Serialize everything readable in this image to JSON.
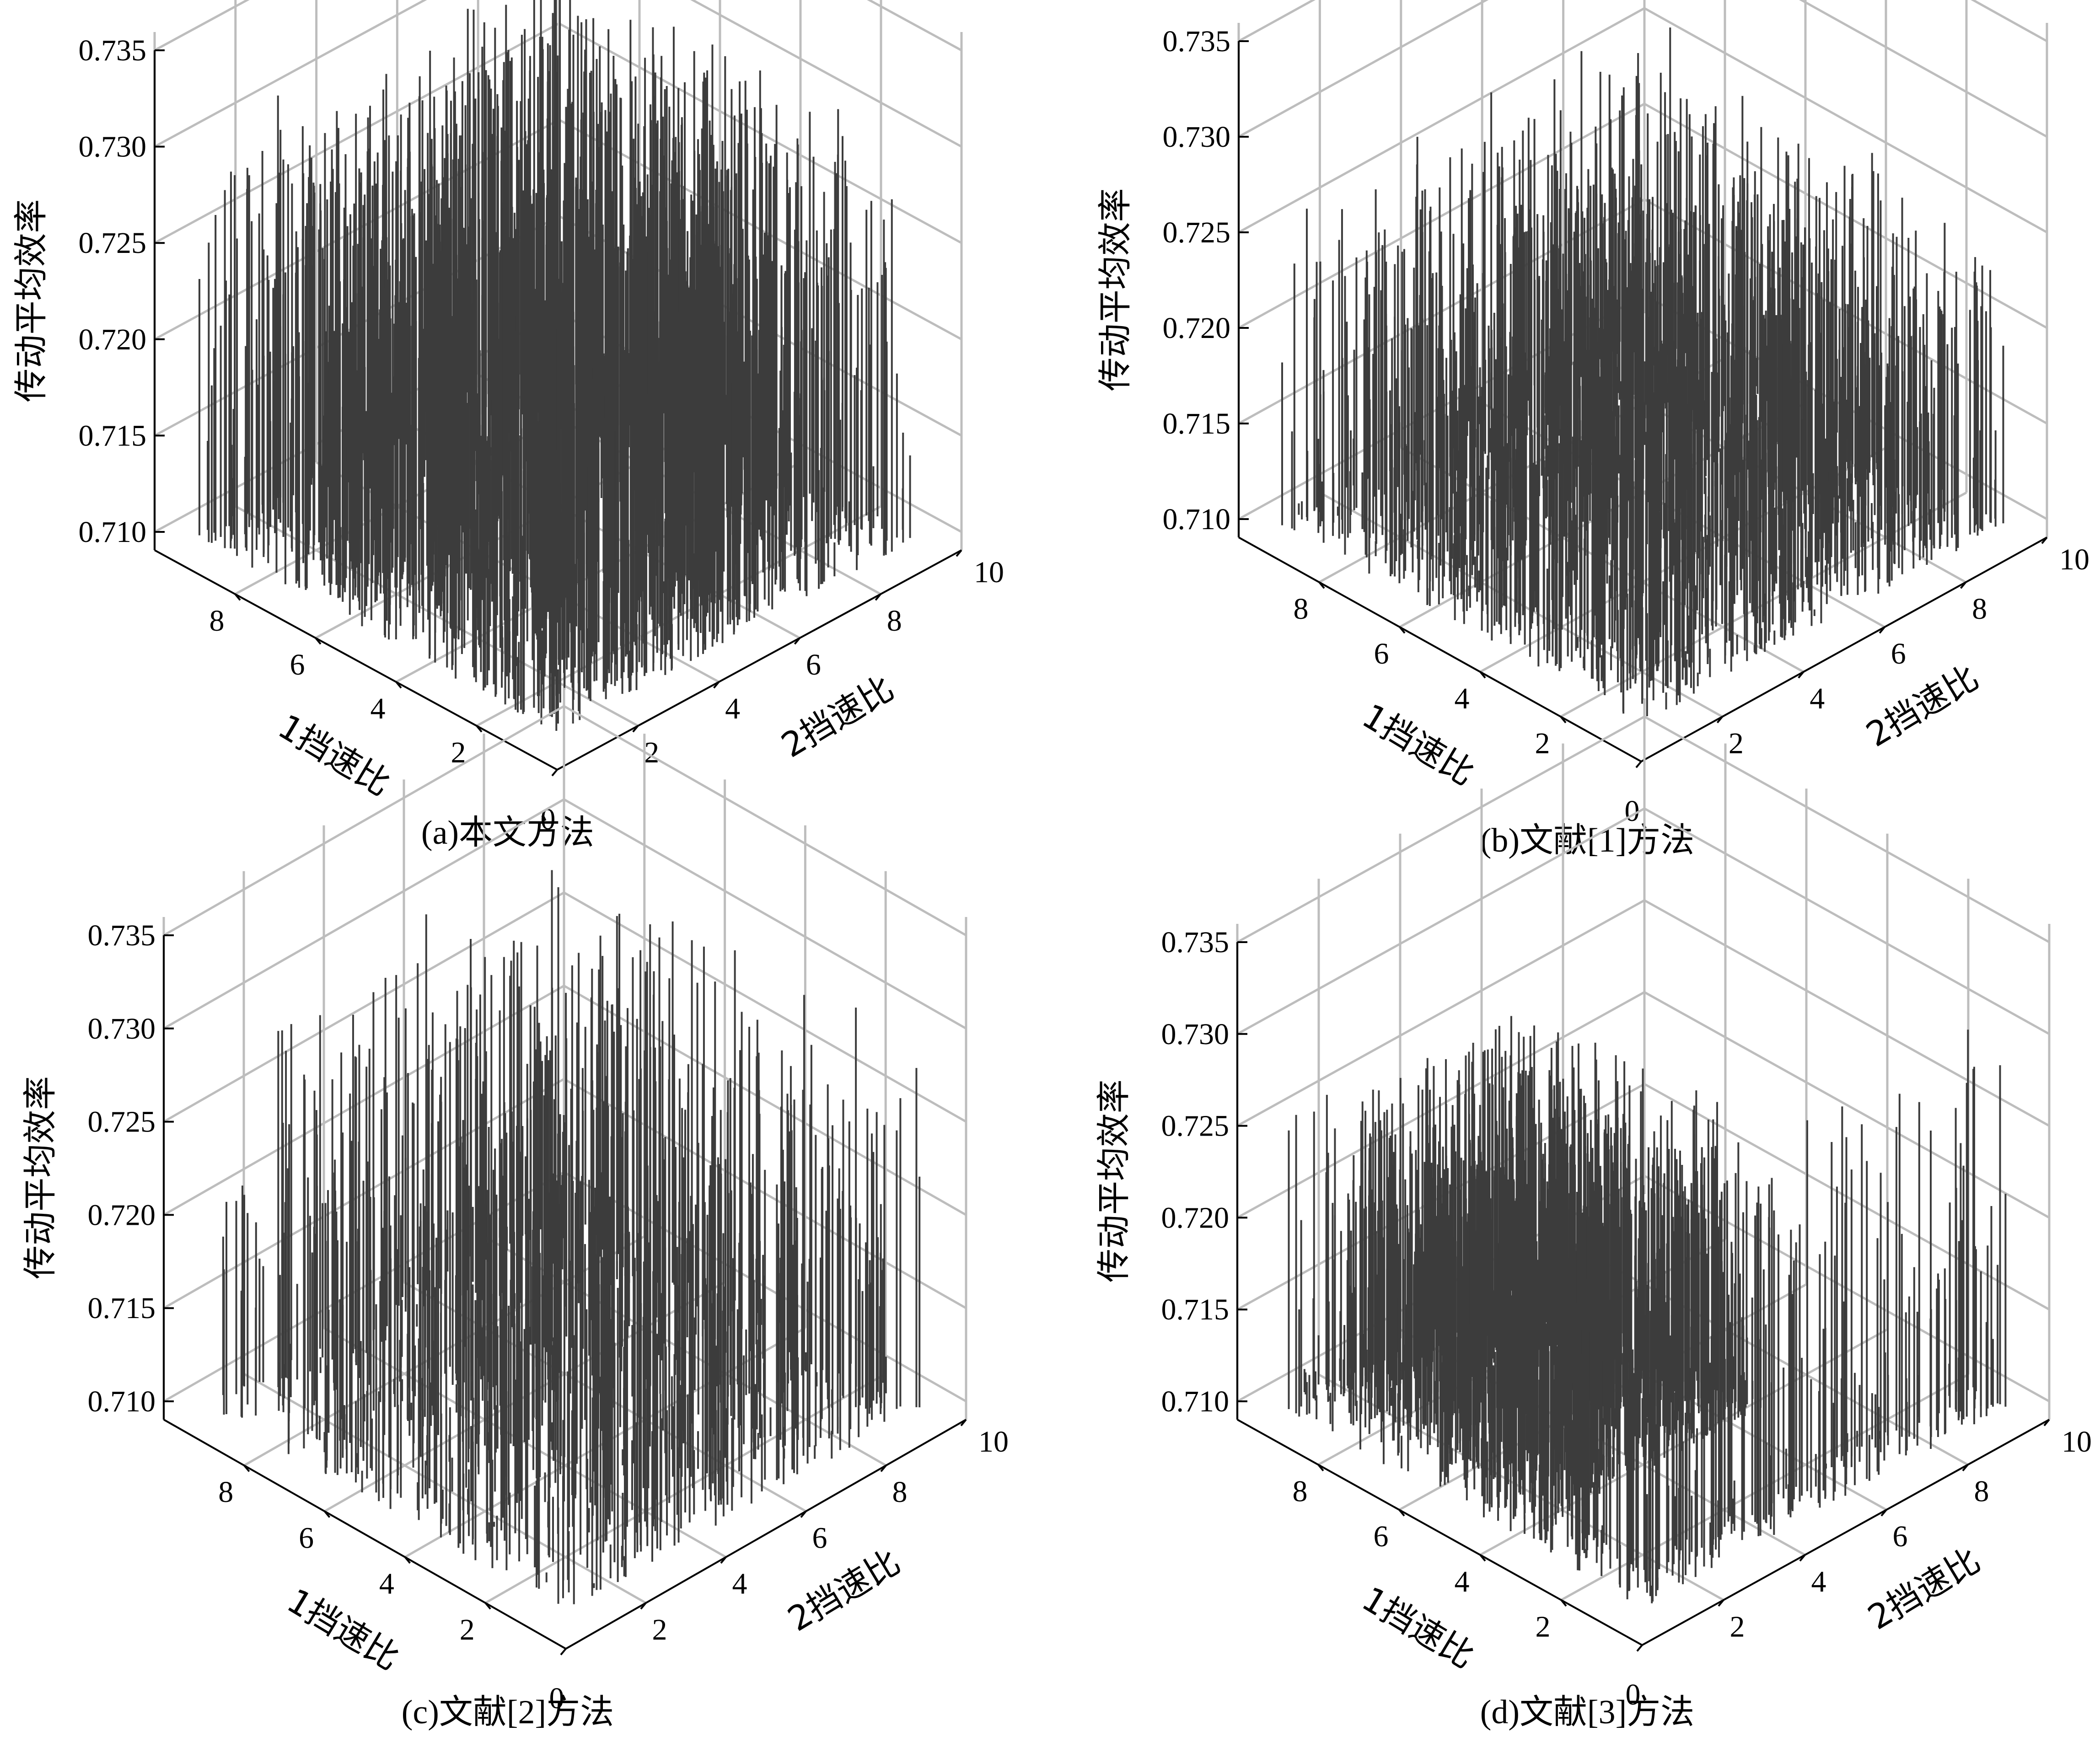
{
  "chart_data": [
    {
      "type": "3d-stem",
      "caption": "(a)本文方法",
      "xlabel": "1挡速比",
      "ylabel": "2挡速比",
      "zlabel": "传动平均效率",
      "zlim": [
        0.709,
        0.735
      ],
      "z_ticks": [
        "0.710",
        "0.715",
        "0.720",
        "0.725",
        "0.730",
        "0.735"
      ],
      "x_ticks": [
        "2",
        "4",
        "6",
        "8"
      ],
      "y_ticks": [
        "0",
        "2",
        "4",
        "6",
        "8",
        "10"
      ],
      "series": [
        {
          "x_range": [
            0.5,
            9.5
          ],
          "y_range": [
            0.5,
            1.5
          ],
          "z_range": [
            0.7115,
            0.73
          ],
          "count": 160
        },
        {
          "x_range": [
            1.5,
            9.5
          ],
          "y_range": [
            1.5,
            9.5
          ],
          "z_range": [
            0.7145,
            0.731
          ],
          "count": 1400
        },
        {
          "x_range": [
            0.5,
            1.5
          ],
          "y_range": [
            1.5,
            9.5
          ],
          "z_range": [
            0.7115,
            0.729
          ],
          "count": 160
        }
      ]
    },
    {
      "type": "3d-stem",
      "caption": "(b)文献[1]方法",
      "xlabel": "1挡速比",
      "ylabel": "2挡速比",
      "zlabel": "传动平均效率",
      "zlim": [
        0.709,
        0.735
      ],
      "z_ticks": [
        "0.710",
        "0.715",
        "0.720",
        "0.725",
        "0.730",
        "0.735"
      ],
      "x_ticks": [
        "2",
        "4",
        "6",
        "8"
      ],
      "y_ticks": [
        "0",
        "2",
        "4",
        "6",
        "8",
        "10"
      ],
      "series": [
        {
          "x_range": [
            0.5,
            9.5
          ],
          "y_range": [
            0.5,
            1.5
          ],
          "z_range": [
            0.71,
            0.7265
          ],
          "count": 160
        },
        {
          "x_range": [
            1.5,
            9.5
          ],
          "y_range": [
            1.5,
            9.5
          ],
          "z_range": [
            0.711,
            0.7265
          ],
          "count": 1100
        },
        {
          "x_range": [
            0.5,
            1.5
          ],
          "y_range": [
            1.5,
            9.5
          ],
          "z_range": [
            0.71,
            0.726
          ],
          "count": 160
        }
      ]
    },
    {
      "type": "3d-stem",
      "caption": "(c)文献[2]方法",
      "xlabel": "1挡速比",
      "ylabel": "2挡速比",
      "zlabel": "传动平均效率",
      "zlim": [
        0.709,
        0.735
      ],
      "z_ticks": [
        "0.710",
        "0.715",
        "0.720",
        "0.725",
        "0.730",
        "0.735"
      ],
      "x_ticks": [
        "2",
        "4",
        "6",
        "8"
      ],
      "y_ticks": [
        "0",
        "2",
        "4",
        "6",
        "8",
        "10"
      ],
      "series": [
        {
          "x_range": [
            0.5,
            9.5
          ],
          "y_range": [
            0.5,
            1.5
          ],
          "z_range": [
            0.71,
            0.726
          ],
          "count": 110
        },
        {
          "x_range": [
            1.5,
            9.5
          ],
          "y_range": [
            1.5,
            9.5
          ],
          "z_range": [
            0.7105,
            0.73
          ],
          "count": 650
        },
        {
          "x_range": [
            0.5,
            1.5
          ],
          "y_range": [
            1.5,
            9.5
          ],
          "z_range": [
            0.71,
            0.728
          ],
          "count": 110
        }
      ]
    },
    {
      "type": "3d-stem",
      "caption": "(d)文献[3]方法",
      "xlabel": "1挡速比",
      "ylabel": "2挡速比",
      "zlabel": "传动平均效率",
      "zlim": [
        0.709,
        0.735
      ],
      "z_ticks": [
        "0.710",
        "0.715",
        "0.720",
        "0.725",
        "0.730",
        "0.735"
      ],
      "x_ticks": [
        "2",
        "4",
        "6",
        "8"
      ],
      "y_ticks": [
        "0",
        "2",
        "4",
        "6",
        "8",
        "10"
      ],
      "series": [
        {
          "x_range": [
            0.5,
            9.5
          ],
          "y_range": [
            0.5,
            1.5
          ],
          "z_range": [
            0.71,
            0.727
          ],
          "count": 160
        },
        {
          "x_range": [
            3.5,
            9.5
          ],
          "y_range": [
            1.5,
            6.5
          ],
          "z_range": [
            0.7105,
            0.7255
          ],
          "count": 1200
        },
        {
          "x_range": [
            0.5,
            1.5
          ],
          "y_range": [
            1.5,
            9.5
          ],
          "z_range": [
            0.71,
            0.73
          ],
          "count": 160
        }
      ]
    }
  ]
}
